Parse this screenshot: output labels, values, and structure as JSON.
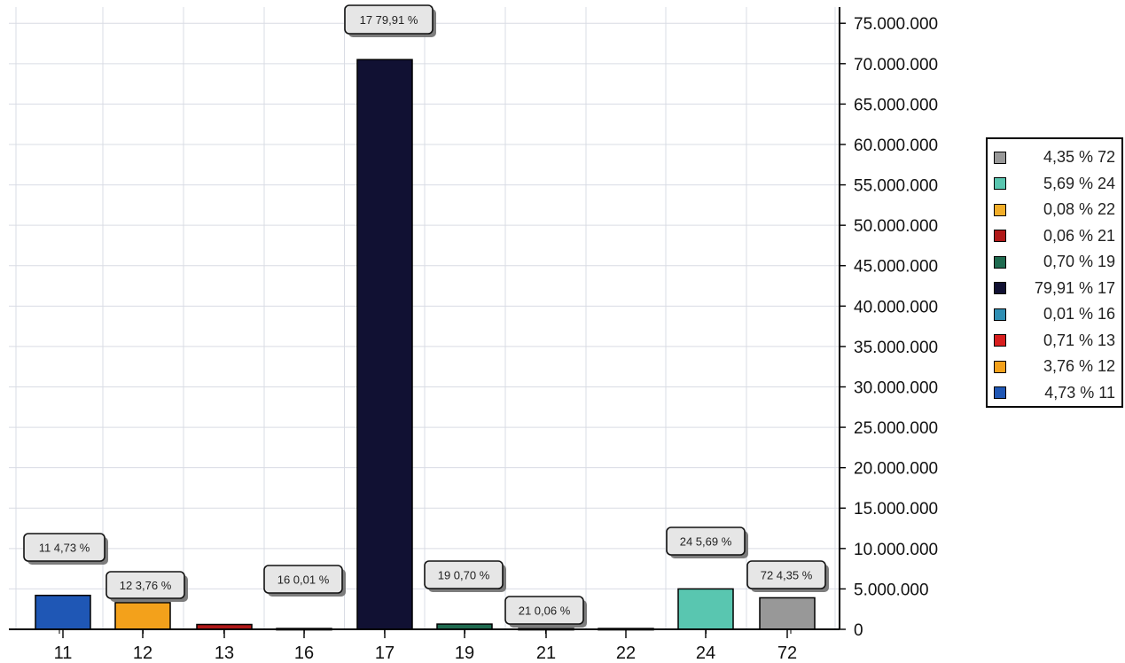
{
  "chart_data": {
    "type": "bar",
    "title": "",
    "xlabel": "",
    "ylabel": "",
    "ylim": [
      0,
      77000000
    ],
    "y_ticks": [
      "0",
      "5.000.000",
      "10.000.000",
      "15.000.000",
      "20.000.000",
      "25.000.000",
      "30.000.000",
      "35.000.000",
      "40.000.000",
      "45.000.000",
      "50.000.000",
      "55.000.000",
      "60.000.000",
      "65.000.000",
      "70.000.000",
      "75.000.000"
    ],
    "grid": true,
    "legend_position": "right",
    "categories": [
      "11",
      "12",
      "13",
      "16",
      "17",
      "19",
      "21",
      "22",
      "24",
      "72"
    ],
    "values": [
      4200000,
      3300000,
      600000,
      100000,
      70500000,
      650000,
      100000,
      100000,
      5000000,
      3900000
    ],
    "data_labels": [
      "11 4,73 %",
      "12 3,76 %",
      "",
      "16 0,01 %",
      "17 79,91 %",
      "19 0,70 %",
      "21 0,06 %",
      "",
      "24 5,69 %",
      "72 4,35 %"
    ],
    "bar_colors": [
      "#1f57b5",
      "#f3a11b",
      "#b01818",
      "#2f8fb4",
      "#111133",
      "#1e6a4f",
      "#b01818",
      "#f2ae29",
      "#59c6b0",
      "#989898"
    ],
    "legend": [
      {
        "label": "4,35 % 72",
        "color": "#989898"
      },
      {
        "label": "5,69 % 24",
        "color": "#59c6b0"
      },
      {
        "label": "0,08 % 22",
        "color": "#f2ae29"
      },
      {
        "label": "0,06 % 21",
        "color": "#b01818"
      },
      {
        "label": "0,70 % 19",
        "color": "#1e6a4f"
      },
      {
        "label": "79,91 % 17",
        "color": "#111133"
      },
      {
        "label": "0,01 % 16",
        "color": "#2f8fb4"
      },
      {
        "label": "0,71 % 13",
        "color": "#d81f1f"
      },
      {
        "label": "3,76 % 12",
        "color": "#f3a11b"
      },
      {
        "label": "4,73 % 11",
        "color": "#1f57b5"
      }
    ]
  }
}
